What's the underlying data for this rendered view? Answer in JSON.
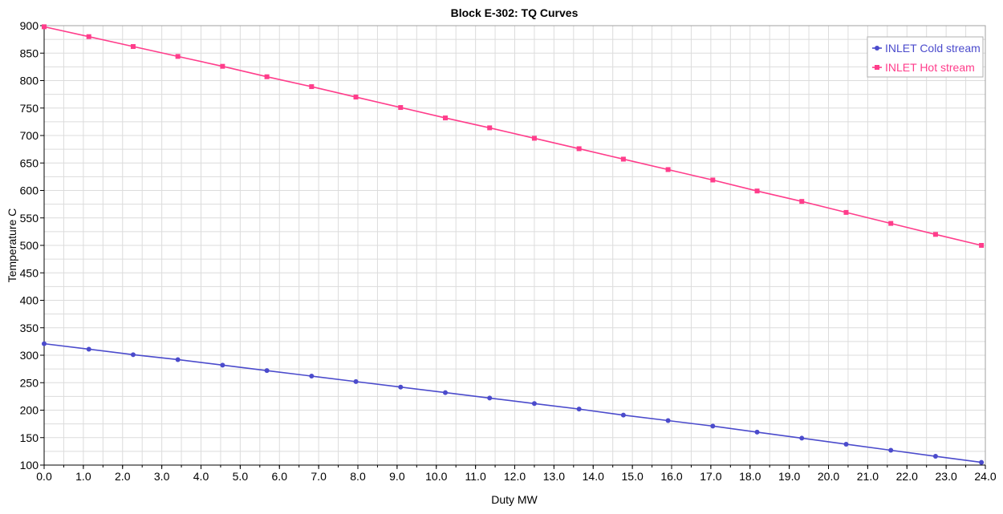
{
  "chart_data": {
    "type": "line",
    "title": "Block E-302: TQ Curves",
    "xlabel": "Duty MW",
    "ylabel": "Temperature C",
    "xlim": [
      0,
      24
    ],
    "ylim": [
      100,
      900
    ],
    "xticks": [
      "0.0",
      "1.0",
      "2.0",
      "3.0",
      "4.0",
      "5.0",
      "6.0",
      "7.0",
      "8.0",
      "9.0",
      "10.0",
      "11.0",
      "12.0",
      "13.0",
      "14.0",
      "15.0",
      "16.0",
      "17.0",
      "18.0",
      "19.0",
      "20.0",
      "21.0",
      "22.0",
      "23.0",
      "24.0"
    ],
    "yticks": [
      "100",
      "150",
      "200",
      "250",
      "300",
      "350",
      "400",
      "450",
      "500",
      "550",
      "600",
      "650",
      "700",
      "750",
      "800",
      "850",
      "900"
    ],
    "grid": true,
    "legend_position": "top-right",
    "series": [
      {
        "name": "INLET Cold stream",
        "color": "#4b4bcc",
        "marker": "circle",
        "x": [
          0.0,
          1.14,
          2.27,
          3.41,
          4.55,
          5.68,
          6.82,
          7.95,
          9.09,
          10.23,
          11.36,
          12.5,
          13.64,
          14.77,
          15.91,
          17.05,
          18.18,
          19.32,
          20.45,
          21.59,
          22.73,
          23.9
        ],
        "y": [
          321,
          311,
          301,
          292,
          282,
          272,
          262,
          252,
          242,
          232,
          222,
          212,
          202,
          191,
          181,
          171,
          160,
          149,
          138,
          127,
          116,
          105
        ]
      },
      {
        "name": "INLET Hot stream",
        "color": "#ff3d8b",
        "marker": "square",
        "x": [
          0.0,
          1.14,
          2.27,
          3.41,
          4.55,
          5.68,
          6.82,
          7.95,
          9.09,
          10.23,
          11.36,
          12.5,
          13.64,
          14.77,
          15.91,
          17.05,
          18.18,
          19.32,
          20.45,
          21.59,
          22.73,
          23.9
        ],
        "y": [
          898,
          880,
          862,
          844,
          826,
          807,
          789,
          770,
          751,
          732,
          714,
          695,
          676,
          657,
          638,
          619,
          599,
          580,
          560,
          540,
          520,
          500
        ]
      }
    ]
  }
}
